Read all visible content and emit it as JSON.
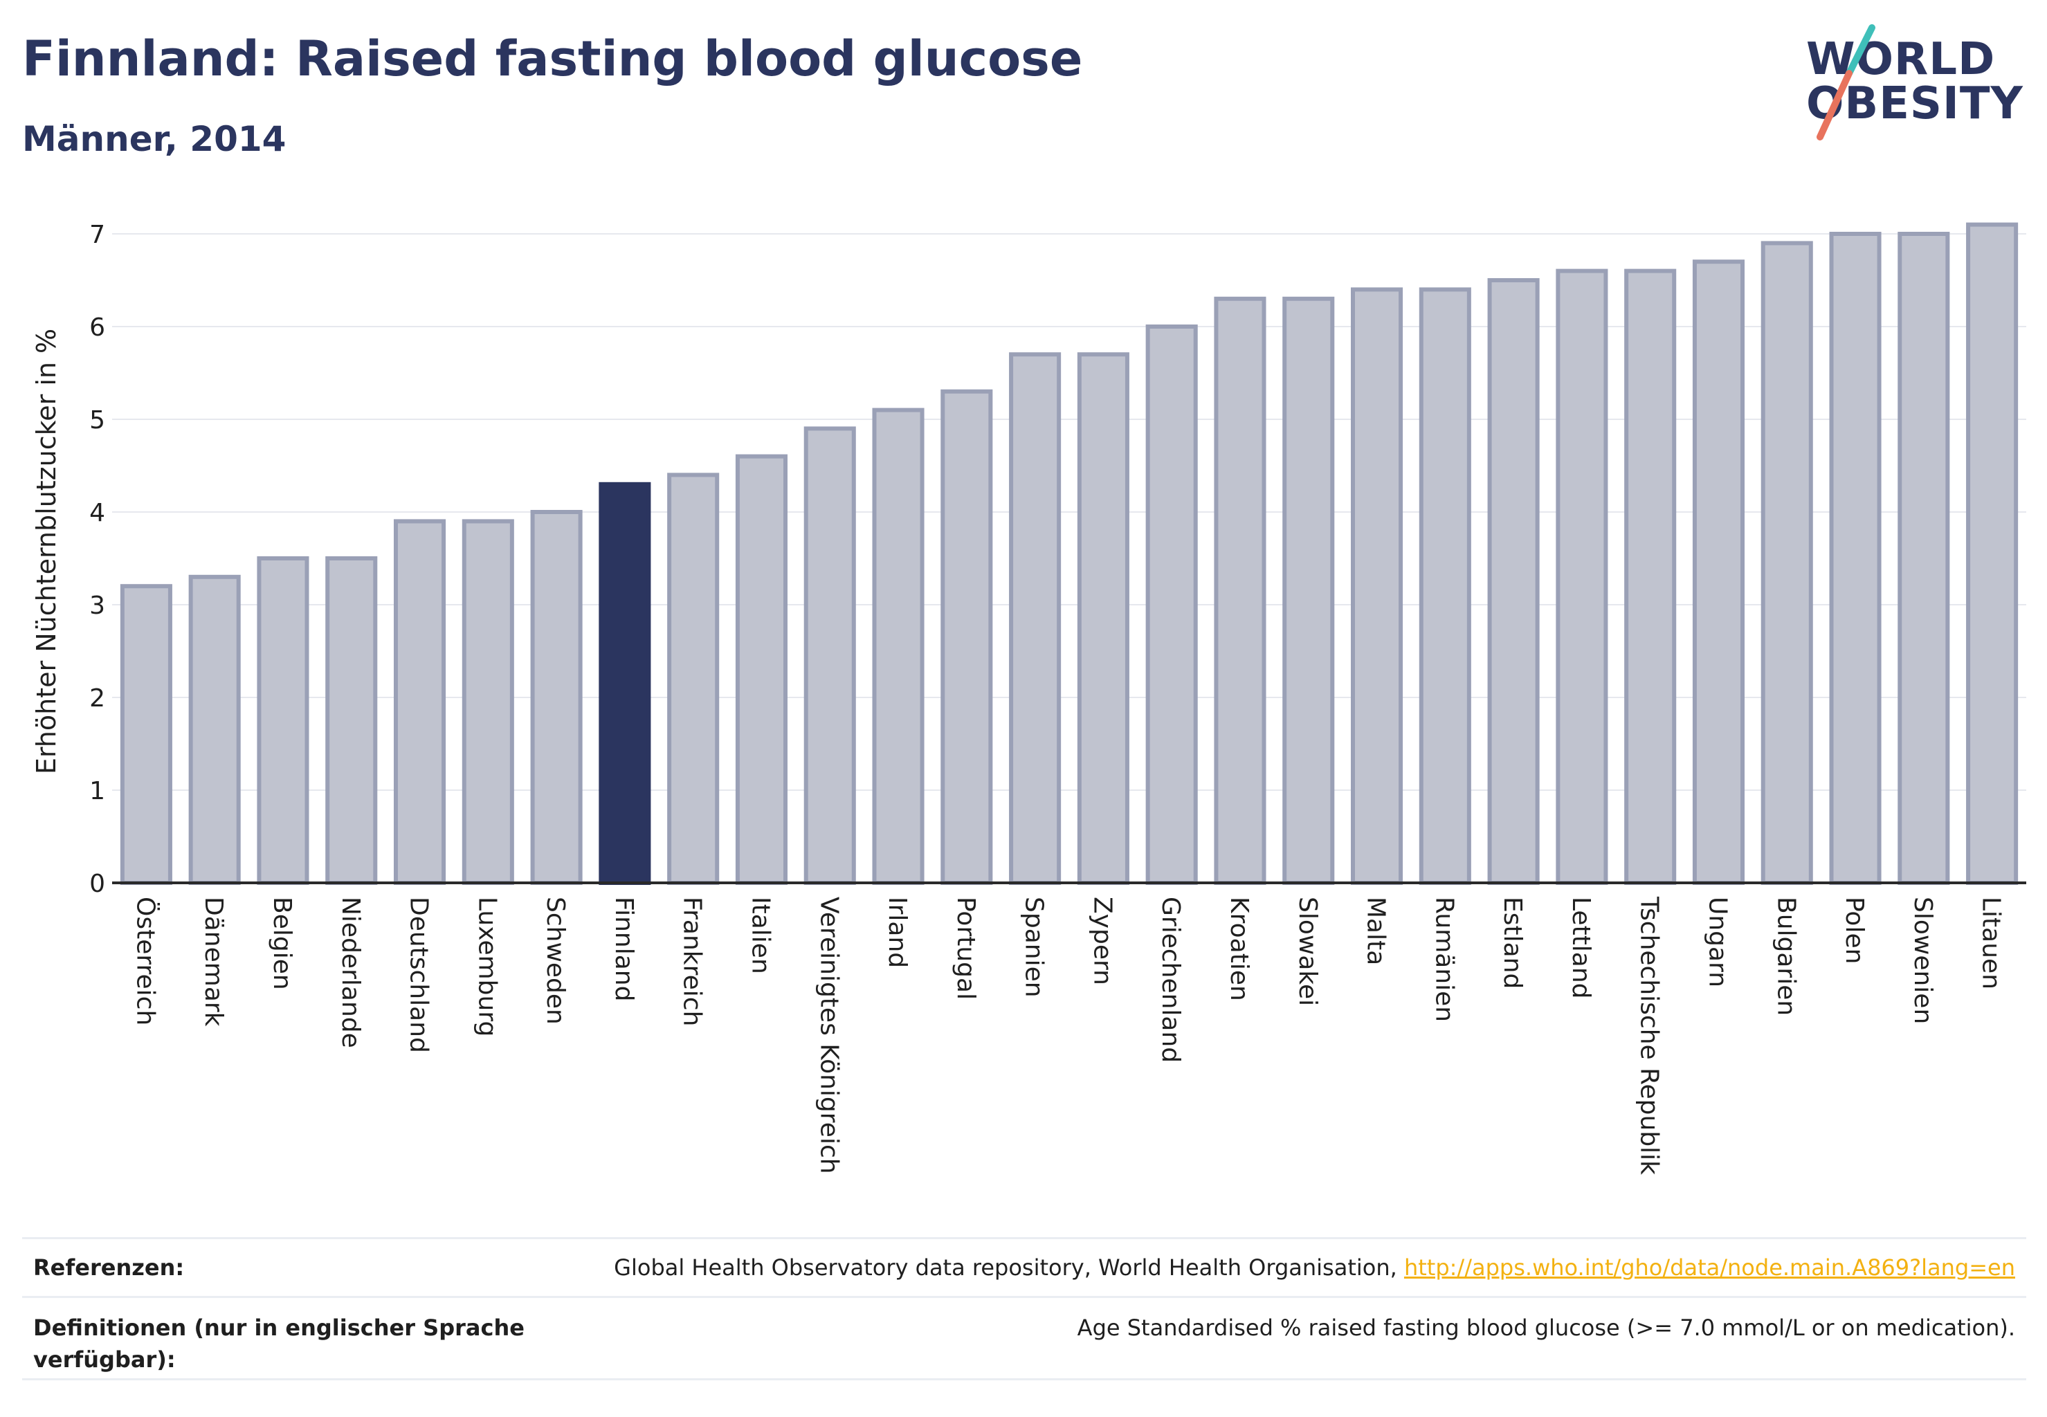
{
  "header": {
    "title": "Finnland: Raised fasting blood glucose",
    "subtitle": "Männer, 2014"
  },
  "logo": {
    "line1": "WORLD",
    "line2": "OBESITY"
  },
  "chart_data": {
    "type": "bar",
    "ylabel": "Erhöhter Nüchternblutzucker in %",
    "ylim": [
      0,
      7.35
    ],
    "yticks": [
      0,
      1,
      2,
      3,
      4,
      5,
      6,
      7
    ],
    "grid": true,
    "highlight": "Finnland",
    "colors": {
      "bar": "#c0c3cf",
      "bar_border": "#9aa0b6",
      "highlight": "#2b355f",
      "grid": "#e6e8ee",
      "axis": "#2a2a2a"
    },
    "categories": [
      "Österreich",
      "Dänemark",
      "Belgien",
      "Niederlande",
      "Deutschland",
      "Luxemburg",
      "Schweden",
      "Finnland",
      "Frankreich",
      "Italien",
      "Vereinigtes Königreich",
      "Irland",
      "Portugal",
      "Spanien",
      "Zypern",
      "Griechenland",
      "Kroatien",
      "Slowakei",
      "Malta",
      "Rumänien",
      "Estland",
      "Lettland",
      "Tschechische Republik",
      "Ungarn",
      "Bulgarien",
      "Polen",
      "Slowenien",
      "Litauen"
    ],
    "values": [
      3.2,
      3.3,
      3.5,
      3.5,
      3.9,
      3.9,
      4.0,
      4.3,
      4.4,
      4.6,
      4.9,
      5.1,
      5.3,
      5.7,
      5.7,
      6.0,
      6.3,
      6.3,
      6.4,
      6.4,
      6.5,
      6.6,
      6.6,
      6.7,
      6.9,
      7.0,
      7.0,
      7.1
    ]
  },
  "footer": {
    "references_label": "Referenzen:",
    "references_text": "Global Health Observatory data repository, World Health Organisation, ",
    "references_link": "http://apps.who.int/gho/data/node.main.A869?lang=en",
    "definitions_label": "Definitionen (nur in englischer Sprache verfügbar):",
    "definitions_text": "Age Standardised % raised fasting blood glucose (>= 7.0 mmol/L or on medication)."
  }
}
